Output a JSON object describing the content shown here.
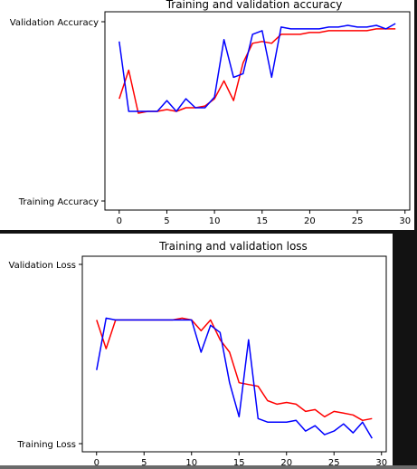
{
  "chart_data": [
    {
      "type": "line",
      "title": "Training and validation accuracy",
      "xlabel": "",
      "ylabel": "",
      "xlim": [
        -1.5,
        30.5
      ],
      "ylim": [
        0,
        100
      ],
      "xticks": [
        0,
        5,
        10,
        15,
        20,
        25,
        30
      ],
      "y_category_labels": [
        {
          "label": "Training Accuracy",
          "y": 0
        },
        {
          "label": "Validation Accuracy",
          "y": 100
        }
      ],
      "grid": false,
      "x": [
        0,
        1,
        2,
        3,
        4,
        5,
        6,
        7,
        8,
        9,
        10,
        11,
        12,
        13,
        14,
        15,
        16,
        17,
        18,
        19,
        20,
        21,
        22,
        23,
        24,
        25,
        26,
        27,
        28,
        29
      ],
      "series": [
        {
          "color": "#ff0000",
          "values": [
            57,
            73,
            49,
            50,
            50,
            51,
            50,
            52,
            52,
            53,
            57,
            67,
            56,
            77,
            88,
            89,
            88,
            93,
            93,
            93,
            94,
            94,
            95,
            95,
            95,
            95,
            95,
            96,
            96,
            96
          ]
        },
        {
          "color": "#0000ff",
          "values": [
            89,
            50,
            50,
            50,
            50,
            56,
            50,
            57,
            52,
            52,
            58,
            90,
            69,
            71,
            93,
            95,
            69,
            97,
            96,
            96,
            96,
            96,
            97,
            97,
            98,
            97,
            97,
            98,
            96,
            99
          ]
        }
      ]
    },
    {
      "type": "line",
      "title": "Training and validation loss",
      "xlabel": "",
      "ylabel": "",
      "xlim": [
        -1.5,
        30.5
      ],
      "ylim": [
        0,
        100
      ],
      "xticks": [
        0,
        5,
        10,
        15,
        20,
        25,
        30
      ],
      "y_category_labels": [
        {
          "label": "Training Loss",
          "y": 0
        },
        {
          "label": "Validation Loss",
          "y": 100
        }
      ],
      "grid": false,
      "x": [
        0,
        1,
        2,
        3,
        4,
        5,
        6,
        7,
        8,
        9,
        10,
        11,
        12,
        13,
        14,
        15,
        16,
        17,
        18,
        19,
        20,
        21,
        22,
        23,
        24,
        25,
        26,
        27,
        28,
        29
      ],
      "series": [
        {
          "color": "#ff0000",
          "values": [
            69,
            53,
            69,
            69,
            69,
            69,
            69,
            69,
            69,
            70,
            69,
            63,
            69,
            58,
            51,
            34,
            33,
            32,
            24,
            22,
            23,
            22,
            18,
            19,
            15,
            18,
            17,
            16,
            13,
            14
          ]
        },
        {
          "color": "#0000ff",
          "values": [
            41,
            70,
            69,
            69,
            69,
            69,
            69,
            69,
            69,
            69,
            69,
            51,
            66,
            62,
            34,
            15,
            58,
            14,
            12,
            12,
            12,
            13,
            7,
            10,
            5,
            7,
            11,
            6,
            12,
            3
          ]
        }
      ]
    }
  ]
}
